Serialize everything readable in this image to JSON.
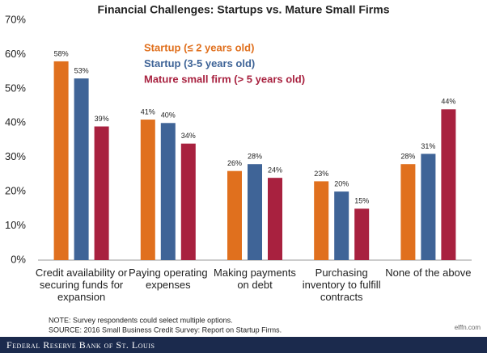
{
  "chart_data": {
    "type": "bar",
    "title": "Financial Challenges: Startups vs. Mature Small Firms",
    "categories": [
      "Credit availability or securing funds for expansion",
      "Paying operating expenses",
      "Making payments on debt",
      "Purchasing inventory to fulfill contracts",
      "None of the above"
    ],
    "series": [
      {
        "name": "Startup (≤ 2 years old)",
        "color": "#e0701e",
        "values": [
          58,
          41,
          26,
          23,
          28
        ],
        "value_labels": [
          "58%",
          "41%",
          "26%",
          "23%",
          "28%"
        ]
      },
      {
        "name": "Startup (3-5 years old)",
        "color": "#3f6497",
        "values": [
          53,
          40,
          28,
          20,
          31
        ],
        "value_labels": [
          "53%",
          "40%",
          "28%",
          "20%",
          "31%"
        ]
      },
      {
        "name": "Mature small firm (> 5 years old)",
        "color": "#a8213f",
        "values": [
          39,
          34,
          24,
          15,
          44
        ],
        "value_labels": [
          "39%",
          "34%",
          "24%",
          "15%",
          "44%"
        ]
      }
    ],
    "ylim": [
      0,
      70
    ],
    "yticks": [
      {
        "value": 0,
        "label": "0%"
      },
      {
        "value": 10,
        "label": "10%"
      },
      {
        "value": 20,
        "label": "20%"
      },
      {
        "value": 30,
        "label": "30%"
      },
      {
        "value": 40,
        "label": "40%"
      },
      {
        "value": 50,
        "label": "50%"
      },
      {
        "value": 60,
        "label": "60%"
      },
      {
        "value": 70,
        "label": "70%"
      }
    ],
    "grid": false,
    "notes": [
      "NOTE: Survey respondents could select multiple options.",
      "SOURCE: 2016 Small Business Credit Survey: Report on Startup Firms."
    ],
    "footer": "Federal Reserve Bank of St. Louis",
    "watermark": "elffn.com"
  }
}
